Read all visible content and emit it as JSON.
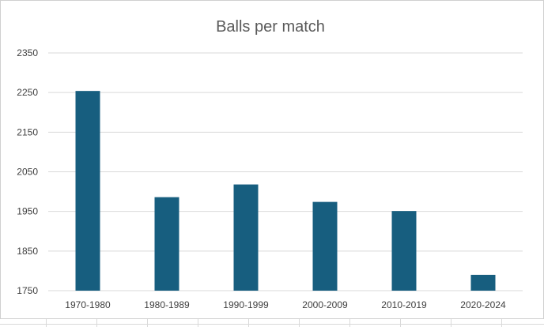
{
  "chart_data": {
    "type": "bar",
    "title": "Balls per match",
    "categories": [
      "1970-1980",
      "1980-1989",
      "1990-1999",
      "2000-2009",
      "2010-2019",
      "2020-2024"
    ],
    "values": [
      2254,
      1986,
      2018,
      1974,
      1951,
      1790
    ],
    "ylim": [
      1750,
      2350
    ],
    "yticks": [
      1750,
      1850,
      1950,
      2050,
      2150,
      2250,
      2350
    ],
    "grid": true,
    "legend": "none",
    "bar_color": "#175E7F",
    "grid_color": "#D9D9D9"
  }
}
